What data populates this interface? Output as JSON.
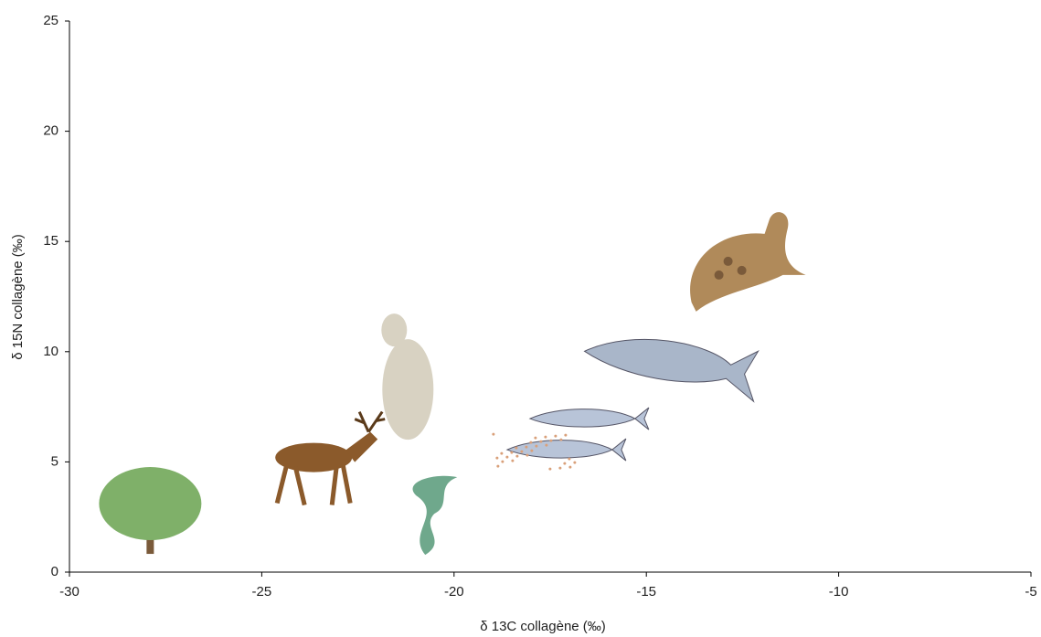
{
  "chart_data": {
    "type": "scatter",
    "x_label": "δ 13C collagène (‰)",
    "y_label": "δ 15N collagène (‰)",
    "x": [
      -27.9,
      -23.65,
      -21.2,
      -20.75,
      -16.6,
      -14.35,
      -12.4
    ],
    "y": [
      2.9,
      5.2,
      8.7,
      2.65,
      6.05,
      9.4,
      14.1
    ],
    "colors": [
      "#7fb069",
      "#8b5a2b",
      "#d8d2c2",
      "#6fa88c",
      "#b8c4d8",
      "#a9b6c9",
      "#b08a5a"
    ],
    "xlim": [
      -30,
      -5
    ],
    "xticks": [
      -30,
      -25,
      -20,
      -15,
      -10,
      -5
    ],
    "ylim": [
      0,
      25
    ],
    "yticks": [
      0,
      5,
      10,
      15,
      20,
      25
    ],
    "grid": false
  }
}
